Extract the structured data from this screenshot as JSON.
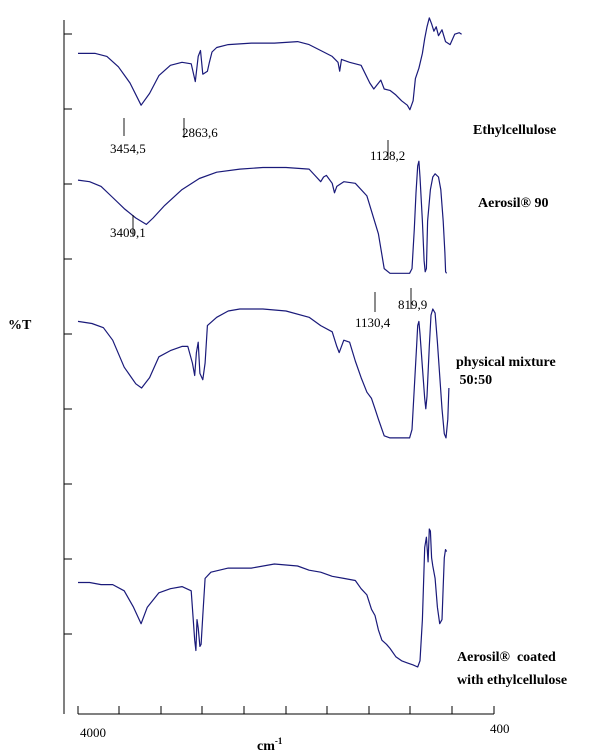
{
  "chart_data": {
    "type": "line",
    "xlabel": "cm",
    "xlabel_sup": "-1",
    "ylabel": "%T",
    "xlim": [
      4000,
      400
    ],
    "x_tick_labels": [
      "4000",
      "400"
    ],
    "grid": false,
    "series": [
      {
        "name": "Ethylcellulose",
        "label_lines": [
          "Ethylcellulose"
        ],
        "color": "#1a1a7a",
        "points": [
          [
            4000,
            72
          ],
          [
            3850,
            72
          ],
          [
            3750,
            70
          ],
          [
            3650,
            63
          ],
          [
            3550,
            52
          ],
          [
            3454,
            37
          ],
          [
            3380,
            45
          ],
          [
            3300,
            57
          ],
          [
            3200,
            64
          ],
          [
            3100,
            66
          ],
          [
            3020,
            65
          ],
          [
            2985,
            53
          ],
          [
            2960,
            70
          ],
          [
            2940,
            74
          ],
          [
            2920,
            58
          ],
          [
            2880,
            60
          ],
          [
            2863,
            66
          ],
          [
            2840,
            73
          ],
          [
            2800,
            76
          ],
          [
            2700,
            78
          ],
          [
            2500,
            79
          ],
          [
            2300,
            79
          ],
          [
            2100,
            80
          ],
          [
            2000,
            78
          ],
          [
            1900,
            74
          ],
          [
            1800,
            70
          ],
          [
            1750,
            66
          ],
          [
            1735,
            60
          ],
          [
            1720,
            68
          ],
          [
            1650,
            66
          ],
          [
            1550,
            64
          ],
          [
            1475,
            52
          ],
          [
            1440,
            48
          ],
          [
            1380,
            54
          ],
          [
            1350,
            48
          ],
          [
            1300,
            47
          ],
          [
            1250,
            44
          ],
          [
            1200,
            40
          ],
          [
            1150,
            37
          ],
          [
            1128,
            34
          ],
          [
            1100,
            40
          ],
          [
            1080,
            55
          ],
          [
            1050,
            62
          ],
          [
            1020,
            72
          ],
          [
            1000,
            82
          ],
          [
            980,
            90
          ],
          [
            960,
            96
          ],
          [
            940,
            92
          ],
          [
            920,
            87
          ],
          [
            900,
            90
          ],
          [
            880,
            84
          ],
          [
            850,
            88
          ],
          [
            820,
            80
          ],
          [
            780,
            78
          ],
          [
            740,
            85
          ],
          [
            700,
            86
          ],
          [
            680,
            85
          ]
        ],
        "peaks": [
          {
            "x": 3454.5,
            "label": "3454,5"
          },
          {
            "x": 2863.6,
            "label": "2863,6"
          },
          {
            "x": 1128.2,
            "label": "1128,2"
          }
        ]
      },
      {
        "name": "Aerosil® 90",
        "label_lines": [
          "Aerosil®  90"
        ],
        "color": "#1a1a7a",
        "points": [
          [
            4000,
            86
          ],
          [
            3900,
            85
          ],
          [
            3800,
            82
          ],
          [
            3700,
            75
          ],
          [
            3600,
            68
          ],
          [
            3500,
            62
          ],
          [
            3409,
            58
          ],
          [
            3350,
            62
          ],
          [
            3250,
            70
          ],
          [
            3100,
            80
          ],
          [
            2950,
            87
          ],
          [
            2800,
            91
          ],
          [
            2600,
            93
          ],
          [
            2400,
            94
          ],
          [
            2200,
            94
          ],
          [
            2000,
            93
          ],
          [
            1950,
            89
          ],
          [
            1900,
            85
          ],
          [
            1875,
            88
          ],
          [
            1850,
            89
          ],
          [
            1800,
            84
          ],
          [
            1780,
            78
          ],
          [
            1760,
            82
          ],
          [
            1700,
            85
          ],
          [
            1600,
            84
          ],
          [
            1500,
            76
          ],
          [
            1400,
            52
          ],
          [
            1350,
            30
          ],
          [
            1300,
            27
          ],
          [
            1200,
            27
          ],
          [
            1130,
            27
          ],
          [
            1110,
            30
          ],
          [
            1090,
            55
          ],
          [
            1075,
            78
          ],
          [
            1060,
            95
          ],
          [
            1050,
            98
          ],
          [
            1040,
            88
          ],
          [
            1020,
            60
          ],
          [
            1005,
            35
          ],
          [
            995,
            28
          ],
          [
            985,
            30
          ],
          [
            975,
            60
          ],
          [
            950,
            80
          ],
          [
            930,
            88
          ],
          [
            910,
            90
          ],
          [
            880,
            88
          ],
          [
            860,
            80
          ],
          [
            840,
            60
          ],
          [
            825,
            40
          ],
          [
            819,
            28
          ],
          [
            810,
            27
          ]
        ],
        "peaks": [
          {
            "x": 3409.1,
            "label": "3409,1"
          },
          {
            "x": 1130.4,
            "label": "1130,4"
          },
          {
            "x": 819.9,
            "label": "819,9"
          }
        ]
      },
      {
        "name": "physical mixture 50:50",
        "label_lines": [
          "physical mixture",
          " 50:50"
        ],
        "color": "#1a1a7a",
        "points": [
          [
            4000,
            82
          ],
          [
            3880,
            81
          ],
          [
            3780,
            79
          ],
          [
            3700,
            73
          ],
          [
            3600,
            60
          ],
          [
            3500,
            52
          ],
          [
            3450,
            50
          ],
          [
            3380,
            55
          ],
          [
            3300,
            65
          ],
          [
            3200,
            68
          ],
          [
            3100,
            70
          ],
          [
            3050,
            70
          ],
          [
            3010,
            62
          ],
          [
            2990,
            56
          ],
          [
            2975,
            67
          ],
          [
            2960,
            72
          ],
          [
            2945,
            57
          ],
          [
            2920,
            54
          ],
          [
            2900,
            62
          ],
          [
            2880,
            80
          ],
          [
            2800,
            84
          ],
          [
            2700,
            87
          ],
          [
            2600,
            88
          ],
          [
            2400,
            88
          ],
          [
            2200,
            87
          ],
          [
            2000,
            84
          ],
          [
            1900,
            80
          ],
          [
            1800,
            77
          ],
          [
            1760,
            70
          ],
          [
            1740,
            67
          ],
          [
            1700,
            73
          ],
          [
            1650,
            72
          ],
          [
            1600,
            63
          ],
          [
            1550,
            55
          ],
          [
            1500,
            48
          ],
          [
            1460,
            45
          ],
          [
            1430,
            40
          ],
          [
            1400,
            35
          ],
          [
            1350,
            27
          ],
          [
            1300,
            26
          ],
          [
            1130,
            26
          ],
          [
            1110,
            30
          ],
          [
            1090,
            50
          ],
          [
            1070,
            70
          ],
          [
            1060,
            80
          ],
          [
            1050,
            82
          ],
          [
            1040,
            76
          ],
          [
            1020,
            60
          ],
          [
            1000,
            45
          ],
          [
            990,
            40
          ],
          [
            980,
            46
          ],
          [
            960,
            70
          ],
          [
            945,
            85
          ],
          [
            930,
            88
          ],
          [
            910,
            86
          ],
          [
            890,
            72
          ],
          [
            870,
            56
          ],
          [
            850,
            40
          ],
          [
            830,
            28
          ],
          [
            815,
            26
          ],
          [
            800,
            35
          ],
          [
            790,
            50
          ]
        ]
      },
      {
        "name": "Aerosil® coated with ethylcellulose",
        "label_lines": [
          "Aerosil®  coated",
          "with ethylcellulose"
        ],
        "color": "#1a1a7a",
        "points": [
          [
            4000,
            58
          ],
          [
            3900,
            58
          ],
          [
            3800,
            57
          ],
          [
            3700,
            57
          ],
          [
            3600,
            54
          ],
          [
            3520,
            46
          ],
          [
            3454,
            38
          ],
          [
            3400,
            46
          ],
          [
            3300,
            53
          ],
          [
            3200,
            55
          ],
          [
            3100,
            56
          ],
          [
            3020,
            54
          ],
          [
            2990,
            30
          ],
          [
            2980,
            25
          ],
          [
            2970,
            40
          ],
          [
            2960,
            36
          ],
          [
            2945,
            27
          ],
          [
            2935,
            28
          ],
          [
            2920,
            42
          ],
          [
            2900,
            60
          ],
          [
            2850,
            63
          ],
          [
            2700,
            65
          ],
          [
            2500,
            65
          ],
          [
            2300,
            67
          ],
          [
            2100,
            66
          ],
          [
            2000,
            64
          ],
          [
            1900,
            63
          ],
          [
            1800,
            61
          ],
          [
            1700,
            60
          ],
          [
            1600,
            59
          ],
          [
            1550,
            55
          ],
          [
            1500,
            52
          ],
          [
            1460,
            45
          ],
          [
            1430,
            42
          ],
          [
            1400,
            35
          ],
          [
            1370,
            30
          ],
          [
            1330,
            28
          ],
          [
            1300,
            26
          ],
          [
            1250,
            22
          ],
          [
            1200,
            20
          ],
          [
            1150,
            19
          ],
          [
            1100,
            18
          ],
          [
            1060,
            17
          ],
          [
            1040,
            20
          ],
          [
            1020,
            40
          ],
          [
            1000,
            75
          ],
          [
            985,
            80
          ],
          [
            970,
            68
          ],
          [
            960,
            84
          ],
          [
            950,
            83
          ],
          [
            940,
            70
          ],
          [
            930,
            66
          ],
          [
            910,
            60
          ],
          [
            890,
            46
          ],
          [
            870,
            38
          ],
          [
            850,
            40
          ],
          [
            840,
            56
          ],
          [
            830,
            70
          ],
          [
            820,
            74
          ],
          [
            810,
            73
          ]
        ]
      }
    ]
  }
}
